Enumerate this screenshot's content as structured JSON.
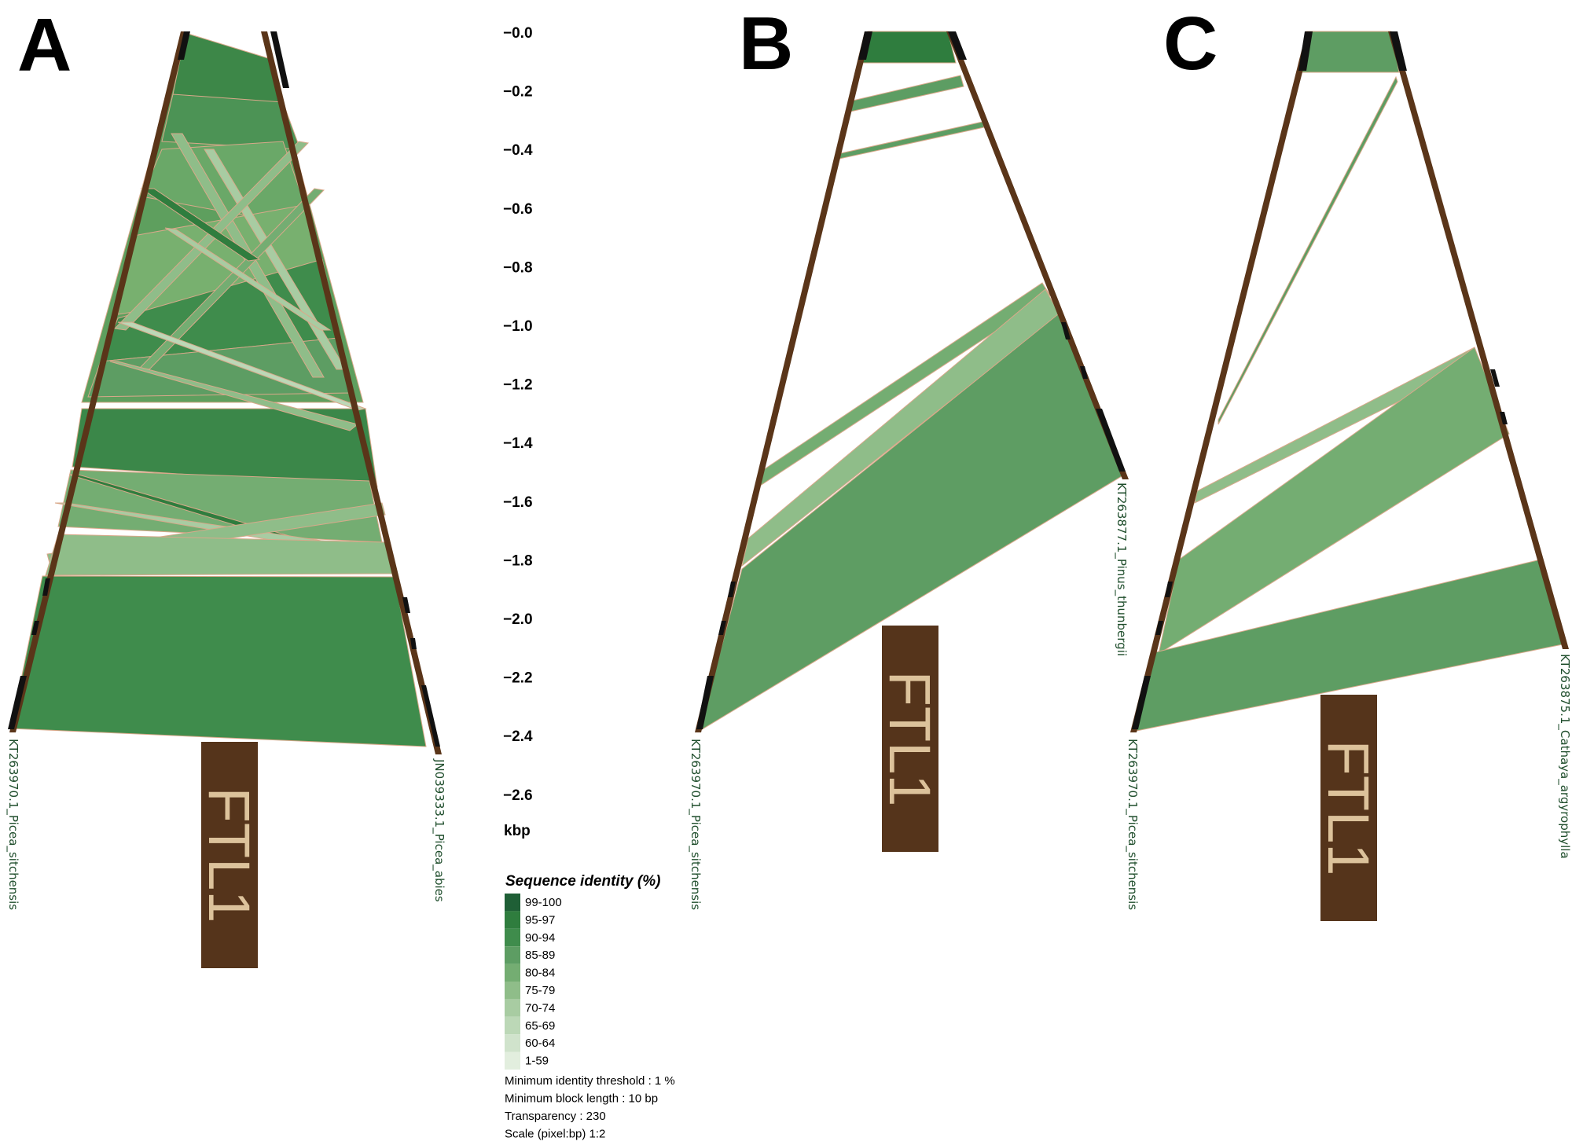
{
  "colors": {
    "chromosome": "#5a3519",
    "gene_box": "#55341b",
    "gene_text": "#dcc29b",
    "outline": "#d9a88a",
    "label": "#1e4d2b",
    "dark_block": "#111111"
  },
  "panels": [
    {
      "id": "A",
      "letter": "A",
      "left_label": "KT263970.1_Picea_sitchensis",
      "right_label": "JN039333.1_Picea_abies",
      "gene": "FTL1"
    },
    {
      "id": "B",
      "letter": "B",
      "left_label": "KT263970.1_Picea_sitchensis",
      "right_label": "KT263877.1_Pinus_thunbergii",
      "gene": "FTL1"
    },
    {
      "id": "C",
      "letter": "C",
      "left_label": "KT263970.1_Picea_sitchensis",
      "right_label": "KT263875.1_Cathaya_argyrophylla",
      "gene": "FTL1"
    }
  ],
  "scale": {
    "unit": "kbp",
    "ticks": [
      "−0.0",
      "−0.2",
      "−0.4",
      "−0.6",
      "−0.8",
      "−1.0",
      "−1.2",
      "−1.4",
      "−1.6",
      "−1.8",
      "−2.0",
      "−2.2",
      "−2.4",
      "−2.6"
    ]
  },
  "legend": {
    "title": "Sequence identity (%)",
    "items": [
      {
        "label": "99-100",
        "color": "#1f5f36"
      },
      {
        "label": "95-97",
        "color": "#2f7d3e"
      },
      {
        "label": "90-94",
        "color": "#3f8c4c"
      },
      {
        "label": "85-89",
        "color": "#5d9d63"
      },
      {
        "label": "80-84",
        "color": "#74ad72"
      },
      {
        "label": "75-79",
        "color": "#8fbd89"
      },
      {
        "label": "70-74",
        "color": "#a8cca2"
      },
      {
        "label": "65-69",
        "color": "#bcd8b7"
      },
      {
        "label": "60-64",
        "color": "#d0e3cc"
      },
      {
        "label": "1-59",
        "color": "#e2eede"
      }
    ],
    "params": [
      "Minimum identity threshold : 1 %",
      "Minimum block length : 10 bp",
      "Transparency : 230",
      "Scale (pixel:bp) 1:2"
    ]
  }
}
